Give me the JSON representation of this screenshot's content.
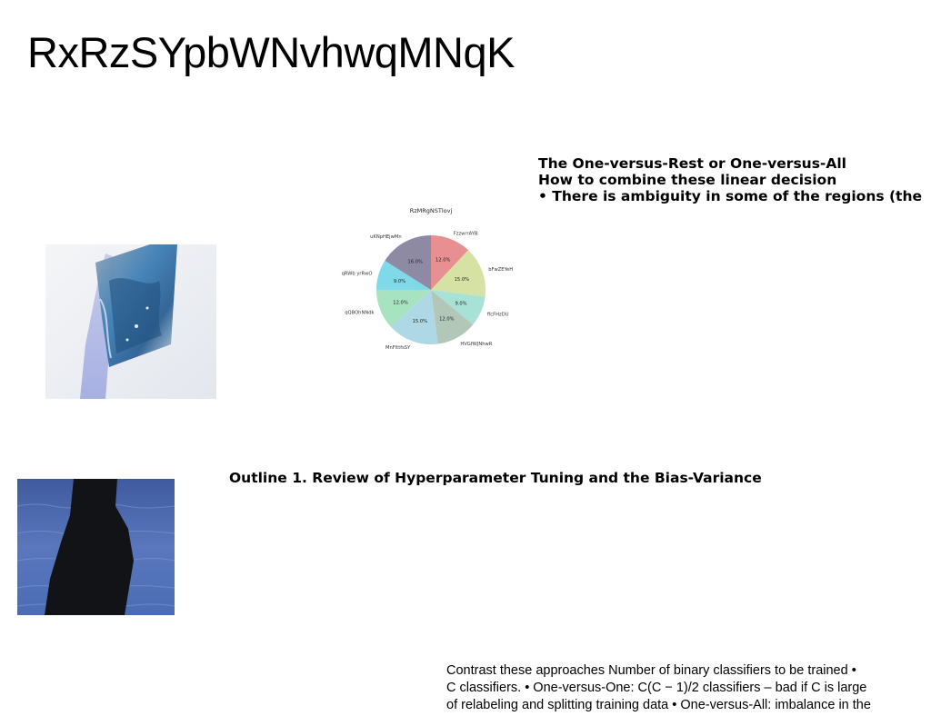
{
  "slide": {
    "title": "RxRzSYpbWNvhwqMNqK"
  },
  "block_ovr": {
    "lines": [
      "The One-versus-Rest or One-versus-All",
      "How to combine these linear decision",
      "• There is ambiguity in some of the regions (the"
    ]
  },
  "block_outline": {
    "text": "Outline 1. Review of Hyperparameter Tuning and the Bias-Variance"
  },
  "bottom_text": {
    "lines": [
      "Contrast these approaches Number of binary classifiers to be trained •",
      "C classifiers. • One-versus-One: C(C − 1)/2 classifiers – bad if C is large",
      "of relabeling and splitting training data • One-versus-All: imbalance in the"
    ]
  },
  "images": {
    "photo_1": "hand in blue glove holding a conical flask with blue contents",
    "photo_2": "dark silhouette of a person in front of blue water"
  },
  "chart_data": {
    "type": "pie",
    "title": "RzMRgNSTlovj",
    "categories": [
      "FzzwrrAYB",
      "bFwZEYeH",
      "ffcFHzDU",
      "HVGfWJNhwR",
      "MnFlttfsSY",
      "qQBOhNNdk",
      "qRWb yrRwO",
      "uKNpHEjwMn"
    ],
    "values": [
      12.0,
      15.0,
      9.0,
      12.0,
      15.0,
      12.0,
      9.0,
      16.0
    ],
    "colors": [
      "#e88f91",
      "#d6e2a4",
      "#a8e2d6",
      "#b2c7b8",
      "#aed8e6",
      "#a7e2c1",
      "#7fd9e8",
      "#8e8aa4"
    ],
    "start_angle_deg": 90,
    "direction": "clockwise",
    "pct_format": "{v}%"
  }
}
